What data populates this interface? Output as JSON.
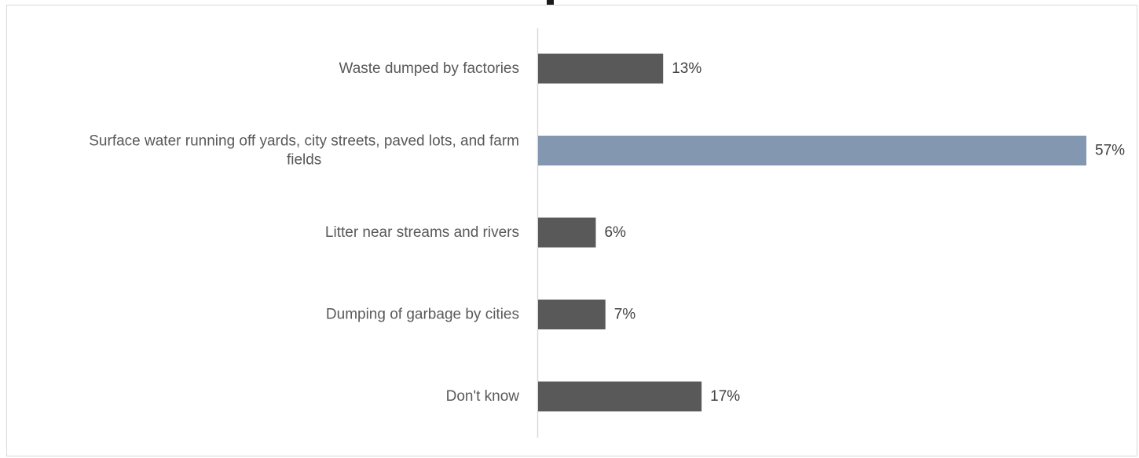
{
  "chart_data": {
    "type": "bar",
    "orientation": "horizontal",
    "categories": [
      [
        "Waste dumped by factories"
      ],
      [
        "Surface water running off yards, city streets, paved lots, and farm",
        "fields"
      ],
      [
        "Litter near streams and rivers"
      ],
      [
        "Dumping of garbage by cities"
      ],
      [
        "Don't know"
      ]
    ],
    "values": [
      13,
      57,
      6,
      7,
      17
    ],
    "value_labels": [
      "13%",
      "57%",
      "6%",
      "7%",
      "17%"
    ],
    "xlim": [
      0,
      57
    ],
    "highlight_index": 1,
    "grid": false,
    "legend": "none"
  },
  "colors": {
    "bar": "#595959",
    "highlight": "#8497b0",
    "axis": "#d9d9d9",
    "category_text": "#595959",
    "value_text": "#404040"
  }
}
